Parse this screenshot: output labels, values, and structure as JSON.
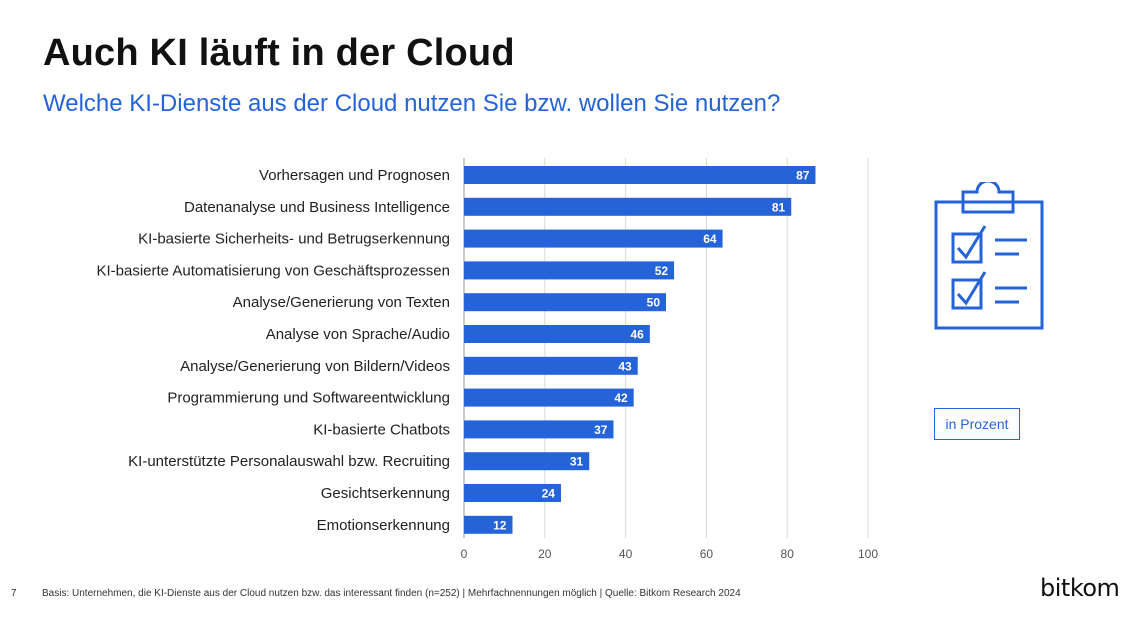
{
  "title": "Auch KI läuft in der Cloud",
  "subtitle": "Welche KI-Dienste aus der Cloud nutzen Sie bzw. wollen Sie nutzen?",
  "unit_label": "in Prozent",
  "page_number": "7",
  "footnote": "Basis: Unternehmen, die KI-Dienste aus der Cloud nutzen bzw. das interessant finden (n=252) | Mehrfachnennungen möglich | Quelle: Bitkom Research 2024",
  "logo_text": "bitkom",
  "icon": "clipboard-checklist-icon",
  "colors": {
    "bar": "#2563d9",
    "accent": "#2563d9",
    "grid": "#d9d9d9"
  },
  "chart_data": {
    "type": "bar",
    "orientation": "horizontal",
    "categories": [
      "Vorhersagen und Prognosen",
      "Datenanalyse und Business Intelligence",
      "KI-basierte Sicherheits- und Betrugserkennung",
      "KI-basierte Automatisierung von Geschäftsprozessen",
      "Analyse/Generierung von Texten",
      "Analyse von Sprache/Audio",
      "Analyse/Generierung von Bildern/Videos",
      "Programmierung und Softwareentwicklung",
      "KI-basierte Chatbots",
      "KI-unterstützte Personalauswahl bzw. Recruiting",
      "Gesichtserkennung",
      "Emotionserkennung"
    ],
    "values": [
      87,
      81,
      64,
      52,
      50,
      46,
      43,
      42,
      37,
      31,
      24,
      12
    ],
    "xlim": [
      0,
      100
    ],
    "xticks": [
      0,
      20,
      40,
      60,
      80,
      100
    ],
    "grid": true
  }
}
